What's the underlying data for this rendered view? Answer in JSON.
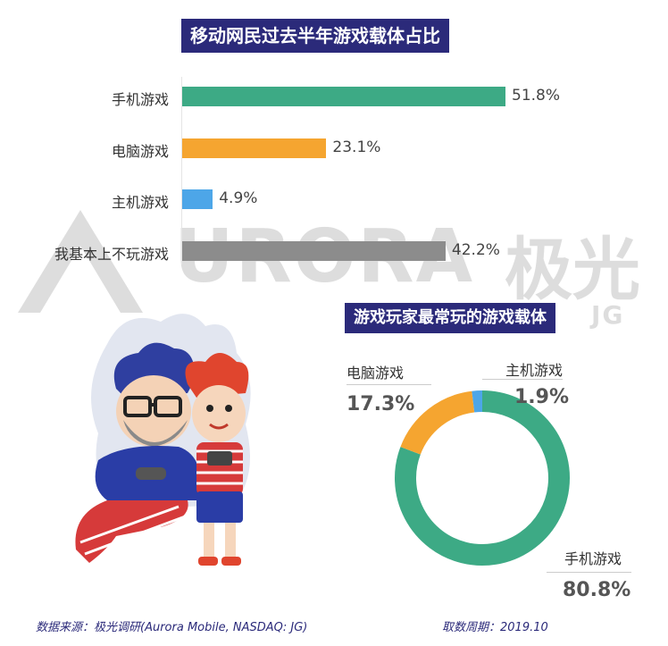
{
  "bar_chart_title": "移动网民过去半年游戏载体占比",
  "donut_chart_title": "游戏玩家最常玩的游戏载体",
  "watermark": {
    "text": "URORA",
    "cn": "极光",
    "sub": "JG"
  },
  "chart_data": [
    {
      "type": "bar",
      "orientation": "horizontal",
      "title": "移动网民过去半年游戏载体占比",
      "categories": [
        "手机游戏",
        "电脑游戏",
        "主机游戏",
        "我基本上不玩游戏"
      ],
      "values": [
        51.8,
        23.1,
        4.9,
        42.2
      ],
      "value_labels": [
        "51.8%",
        "23.1%",
        "4.9%",
        "42.2%"
      ],
      "unit": "%",
      "colors": [
        "#3daa85",
        "#f5a530",
        "#4da6e8",
        "#8c8c8c"
      ],
      "xlim": [
        0,
        55
      ]
    },
    {
      "type": "pie",
      "variant": "donut",
      "title": "游戏玩家最常玩的游戏载体",
      "categories": [
        "手机游戏",
        "电脑游戏",
        "主机游戏"
      ],
      "values": [
        80.8,
        17.3,
        1.9
      ],
      "value_labels": [
        "80.8%",
        "17.3%",
        "1.9%"
      ],
      "unit": "%",
      "colors": [
        "#3daa85",
        "#f5a530",
        "#4da6e8"
      ]
    }
  ],
  "footer": {
    "source": "数据来源：极光调研(Aurora Mobile, NASDAQ: JG)",
    "period": "取数周期：2019.10"
  }
}
